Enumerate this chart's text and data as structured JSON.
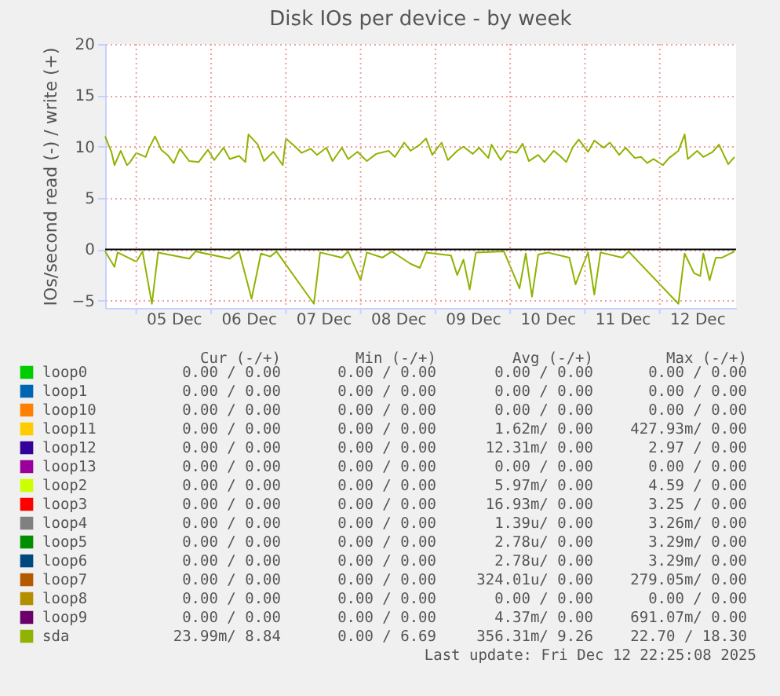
{
  "chart_data": {
    "type": "line",
    "title": "Disk IOs per device - by week",
    "ylabel": "IOs/second read (-) / write (+)",
    "xlim": [
      "2025-12-04T14:00",
      "2025-12-13T00:30"
    ],
    "xticks": [
      {
        "value": "2025-12-05T00:00",
        "label": null
      },
      {
        "value": "2025-12-05T12:00",
        "label": "05 Dec"
      },
      {
        "value": "2025-12-06T00:00",
        "label": null
      },
      {
        "value": "2025-12-06T12:00",
        "label": "06 Dec"
      },
      {
        "value": "2025-12-07T00:00",
        "label": null
      },
      {
        "value": "2025-12-07T12:00",
        "label": "07 Dec"
      },
      {
        "value": "2025-12-08T00:00",
        "label": null
      },
      {
        "value": "2025-12-08T12:00",
        "label": "08 Dec"
      },
      {
        "value": "2025-12-09T00:00",
        "label": null
      },
      {
        "value": "2025-12-09T12:00",
        "label": "09 Dec"
      },
      {
        "value": "2025-12-10T00:00",
        "label": null
      },
      {
        "value": "2025-12-10T12:00",
        "label": "10 Dec"
      },
      {
        "value": "2025-12-11T00:00",
        "label": null
      },
      {
        "value": "2025-12-11T12:00",
        "label": "11 Dec"
      },
      {
        "value": "2025-12-12T00:00",
        "label": null
      },
      {
        "value": "2025-12-12T12:00",
        "label": "12 Dec"
      }
    ],
    "ylim": [
      -5.7,
      20
    ],
    "yticks": [
      -5,
      0,
      5,
      10,
      15,
      20
    ],
    "grid": true,
    "legend": "bottom",
    "line_style": "solid",
    "marker": "none",
    "ref_lines": [
      {
        "axis": "y",
        "value": 0,
        "color": "#000000"
      }
    ],
    "series": [
      {
        "name": "loop0",
        "color": "#00cc00"
      },
      {
        "name": "loop1",
        "color": "#0066b3"
      },
      {
        "name": "loop10",
        "color": "#ff8000"
      },
      {
        "name": "loop11",
        "color": "#ffcc00"
      },
      {
        "name": "loop12",
        "color": "#330099"
      },
      {
        "name": "loop13",
        "color": "#990099"
      },
      {
        "name": "loop2",
        "color": "#ccff00"
      },
      {
        "name": "loop3",
        "color": "#ff0000"
      },
      {
        "name": "loop4",
        "color": "#808080"
      },
      {
        "name": "loop5",
        "color": "#008f00"
      },
      {
        "name": "loop6",
        "color": "#00487d"
      },
      {
        "name": "loop7",
        "color": "#b35a00"
      },
      {
        "name": "loop8",
        "color": "#b38f00"
      },
      {
        "name": "loop9",
        "color": "#6b006b"
      },
      {
        "name": "sda",
        "color": "#8fb300",
        "x": [
          "2025-12-04T14:00",
          "2025-12-04T16:00",
          "2025-12-04T17:00",
          "2025-12-04T19:00",
          "2025-12-04T21:00",
          "2025-12-04T22:00",
          "2025-12-05T00:00",
          "2025-12-05T03:00",
          "2025-12-05T04:00",
          "2025-12-05T06:00",
          "2025-12-05T08:00",
          "2025-12-05T10:00",
          "2025-12-05T12:00",
          "2025-12-05T14:00",
          "2025-12-05T17:00",
          "2025-12-05T20:00",
          "2025-12-05T23:00",
          "2025-12-06T01:00",
          "2025-12-06T04:00",
          "2025-12-06T06:00",
          "2025-12-06T09:00",
          "2025-12-06T11:00",
          "2025-12-06T12:00",
          "2025-12-06T15:00",
          "2025-12-06T17:00",
          "2025-12-06T20:00",
          "2025-12-06T23:00",
          "2025-12-07T00:00",
          "2025-12-07T03:00",
          "2025-12-07T05:00",
          "2025-12-07T08:00",
          "2025-12-07T10:00",
          "2025-12-07T13:00",
          "2025-12-07T15:00",
          "2025-12-07T18:00",
          "2025-12-07T20:00",
          "2025-12-07T23:00",
          "2025-12-08T02:00",
          "2025-12-08T05:00",
          "2025-12-08T09:00",
          "2025-12-08T11:00",
          "2025-12-08T14:00",
          "2025-12-08T16:00",
          "2025-12-08T19:00",
          "2025-12-08T21:00",
          "2025-12-08T23:00",
          "2025-12-09T02:00",
          "2025-12-09T04:00",
          "2025-12-09T07:00",
          "2025-12-09T09:00",
          "2025-12-09T12:00",
          "2025-12-09T14:00",
          "2025-12-09T17:00",
          "2025-12-09T18:00",
          "2025-12-09T21:00",
          "2025-12-09T23:00",
          "2025-12-10T02:00",
          "2025-12-10T04:00",
          "2025-12-10T06:00",
          "2025-12-10T09:00",
          "2025-12-10T11:00",
          "2025-12-10T14:00",
          "2025-12-10T16:00",
          "2025-12-10T18:00",
          "2025-12-10T20:00",
          "2025-12-10T22:00",
          "2025-12-11T01:00",
          "2025-12-11T03:00",
          "2025-12-11T06:00",
          "2025-12-11T08:00",
          "2025-12-11T11:00",
          "2025-12-11T13:00",
          "2025-12-11T16:00",
          "2025-12-11T18:00",
          "2025-12-11T20:00",
          "2025-12-11T22:00",
          "2025-12-12T01:00",
          "2025-12-12T03:00",
          "2025-12-12T06:00",
          "2025-12-12T08:00",
          "2025-12-12T09:00",
          "2025-12-12T12:00",
          "2025-12-12T14:00",
          "2025-12-12T17:00",
          "2025-12-12T19:00",
          "2025-12-12T22:00",
          "2025-12-13T00:00"
        ],
        "values": [
          11,
          9.5,
          8.2,
          9.6,
          8.2,
          8.5,
          9.4,
          9.0,
          9.8,
          11,
          9.7,
          9.2,
          8.4,
          9.8,
          8.6,
          8.5,
          9.7,
          8.7,
          9.9,
          8.8,
          9.1,
          8.5,
          11.2,
          10.2,
          8.6,
          9.5,
          8.2,
          10.8,
          10.0,
          9.4,
          9.8,
          9.2,
          9.9,
          8.6,
          9.9,
          8.8,
          9.5,
          8.6,
          9.3,
          9.6,
          9.0,
          10.4,
          9.6,
          10.2,
          10.8,
          9.2,
          10.4,
          8.7,
          9.6,
          10.0,
          9.3,
          9.9,
          8.9,
          10.2,
          8.7,
          9.6,
          9.4,
          10.3,
          8.6,
          9.2,
          8.5,
          9.6,
          9.1,
          8.5,
          9.9,
          10.7,
          9.5,
          10.6,
          9.9,
          10.4,
          9.2,
          9.9,
          8.9,
          9.0,
          8.4,
          8.8,
          8.2,
          8.9,
          9.6,
          11.2,
          8.8,
          9.6,
          9.0,
          9.5,
          10.2,
          8.3,
          9.0
        ]
      },
      {
        "color": "#8fb300",
        "x": [
          "2025-12-04T14:00",
          "2025-12-04T17:00",
          "2025-12-04T18:00",
          "2025-12-05T00:00",
          "2025-12-05T02:00",
          "2025-12-05T05:00",
          "2025-12-05T07:00",
          "2025-12-05T17:00",
          "2025-12-05T19:00",
          "2025-12-06T06:00",
          "2025-12-06T09:00",
          "2025-12-06T13:00",
          "2025-12-06T16:00",
          "2025-12-06T19:00",
          "2025-12-06T21:00",
          "2025-12-07T09:00",
          "2025-12-07T11:00",
          "2025-12-07T18:00",
          "2025-12-07T20:00",
          "2025-12-08T00:00",
          "2025-12-08T02:00",
          "2025-12-08T07:00",
          "2025-12-08T10:00",
          "2025-12-08T16:00",
          "2025-12-08T19:00",
          "2025-12-08T21:00",
          "2025-12-09T05:00",
          "2025-12-09T07:00",
          "2025-12-09T09:00",
          "2025-12-09T11:00",
          "2025-12-09T13:00",
          "2025-12-09T22:00",
          "2025-12-10T03:00",
          "2025-12-10T05:00",
          "2025-12-10T07:00",
          "2025-12-10T09:00",
          "2025-12-10T12:00",
          "2025-12-10T19:00",
          "2025-12-10T21:00",
          "2025-12-10T23:00",
          "2025-12-11T01:00",
          "2025-12-11T03:00",
          "2025-12-11T05:00",
          "2025-12-11T12:00",
          "2025-12-11T14:00",
          "2025-12-12T06:00",
          "2025-12-12T08:00",
          "2025-12-12T11:00",
          "2025-12-12T13:00",
          "2025-12-12T14:00",
          "2025-12-12T16:00",
          "2025-12-12T18:00",
          "2025-12-12T20:00",
          "2025-12-13T00:00"
        ],
        "values": [
          -0.2,
          -1.7,
          -0.3,
          -1.2,
          -0.2,
          -5.3,
          -0.3,
          -0.9,
          -0.2,
          -0.9,
          -0.2,
          -4.8,
          -0.4,
          -0.7,
          -0.2,
          -5.3,
          -0.3,
          -0.8,
          -0.2,
          -3.0,
          -0.3,
          -0.8,
          -0.2,
          -1.4,
          -1.8,
          -0.3,
          -0.6,
          -2.5,
          -1.0,
          -3.9,
          -0.3,
          -0.2,
          -3.8,
          -0.4,
          -4.6,
          -0.5,
          -0.3,
          -0.8,
          -3.4,
          -1.8,
          -0.3,
          -4.4,
          -0.3,
          -0.8,
          -0.2,
          -5.3,
          -0.4,
          -2.3,
          -2.6,
          -0.4,
          -3.0,
          -0.8,
          -0.8,
          -0.2
        ]
      }
    ],
    "annotations": [
      "Cur (-/+)",
      "Min (-/+)",
      "Avg (-/+)",
      "Max (-/+)",
      "0.00 / 0.00",
      "0.00 / 0.00",
      "0.00 / 0.00",
      "0.00 / 0.00",
      "0.00 / 0.00",
      "0.00 / 0.00",
      "0.00 / 0.00",
      "0.00 / 0.00",
      "0.00 / 0.00",
      "0.00 / 0.00",
      "0.00 / 0.00",
      "0.00 / 0.00",
      "0.00 / 0.00",
      "0.00 / 0.00",
      "1.62m/ 0.00",
      "427.93m/ 0.00",
      "0.00 / 0.00",
      "0.00 / 0.00",
      "12.31m/ 0.00",
      "2.97 / 0.00",
      "0.00 / 0.00",
      "0.00 / 0.00",
      "0.00 / 0.00",
      "0.00 / 0.00",
      "0.00 / 0.00",
      "0.00 / 0.00",
      "5.97m/ 0.00",
      "4.59 / 0.00",
      "0.00 / 0.00",
      "0.00 / 0.00",
      "16.93m/ 0.00",
      "3.25 / 0.00",
      "0.00 / 0.00",
      "0.00 / 0.00",
      "1.39u/ 0.00",
      "3.26m/ 0.00",
      "0.00 / 0.00",
      "0.00 / 0.00",
      "2.78u/ 0.00",
      "3.29m/ 0.00",
      "0.00 / 0.00",
      "0.00 / 0.00",
      "2.78u/ 0.00",
      "3.29m/ 0.00",
      "0.00 / 0.00",
      "0.00 / 0.00",
      "324.01u/ 0.00",
      "279.05m/ 0.00",
      "0.00 / 0.00",
      "0.00 / 0.00",
      "0.00 / 0.00",
      "0.00 / 0.00",
      "0.00 / 0.00",
      "0.00 / 0.00",
      "4.37m/ 0.00",
      "691.07m/ 0.00",
      "23.99m/ 8.84",
      "0.00 / 6.69",
      "356.31m/ 9.26",
      "22.70 / 18.30",
      "Last update: Fri Dec 12 22:25:08 2025"
    ]
  }
}
